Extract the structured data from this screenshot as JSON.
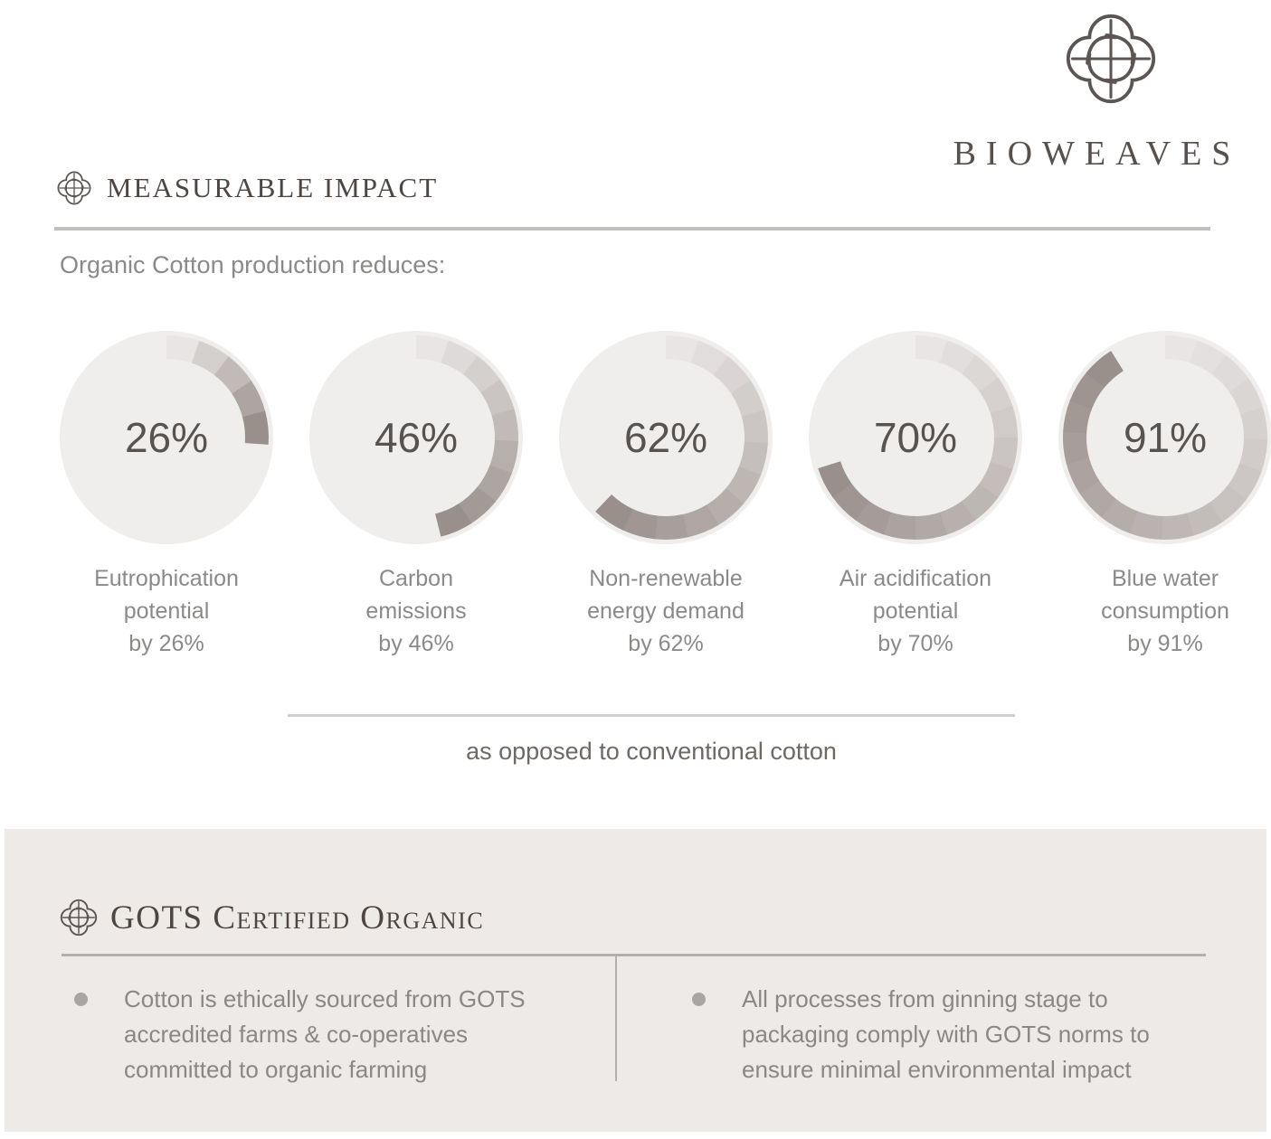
{
  "brand": {
    "name": "BIOWEAVES",
    "logo_icon": "quatrefoil-knot"
  },
  "impact_section": {
    "heading": "MEASURABLE IMPACT",
    "subtitle": "Organic Cotton production reduces:",
    "footnote": "as opposed to conventional cotton"
  },
  "gots_section": {
    "heading": "GOTS Certified Organic",
    "bullets": [
      {
        "lines": [
          "Cotton is ethically sourced from GOTS",
          "accredited farms & co-operatives",
          "committed to organic farming"
        ]
      },
      {
        "lines": [
          "All processes from ginning stage to",
          "packaging comply with GOTS norms to",
          "ensure minimal environmental impact"
        ]
      }
    ]
  },
  "chart_data": {
    "type": "pie",
    "variant": "segmented-ring-progress-gauges",
    "title": "Organic Cotton production reduces:",
    "footnote": "as opposed to conventional cotton",
    "direction": "clockwise",
    "start_angle_deg": 0,
    "ring": {
      "track_color": "#f0eeed",
      "segment_start_color": "#e8e5e4",
      "segment_end_color": "#998f8b",
      "segment_step_deg": 18,
      "outer_radius": 113,
      "inner_radius": 87,
      "circle_radius": 118
    },
    "gauges": [
      {
        "value": 26,
        "center_label": "26%",
        "caption_lines": [
          "Eutrophication",
          "potential",
          "by 26%"
        ]
      },
      {
        "value": 46,
        "center_label": "46%",
        "caption_lines": [
          "Carbon",
          "emissions",
          "by 46%"
        ]
      },
      {
        "value": 62,
        "center_label": "62%",
        "caption_lines": [
          "Non-renewable",
          "energy demand",
          "by 62%"
        ]
      },
      {
        "value": 70,
        "center_label": "70%",
        "caption_lines": [
          "Air acidification",
          "potential",
          "by 70%"
        ]
      },
      {
        "value": 91,
        "center_label": "91%",
        "caption_lines": [
          "Blue water",
          "consumption",
          "by 91%"
        ]
      }
    ]
  },
  "colors": {
    "heading": "#4d4643",
    "body_text": "#8c8a89",
    "footnote_text": "#6e6966",
    "percent_text": "#575350",
    "panel_bg": "#edeae8",
    "rule_light": "#c2c0bf",
    "rule_panel": "#b2b0ae"
  }
}
